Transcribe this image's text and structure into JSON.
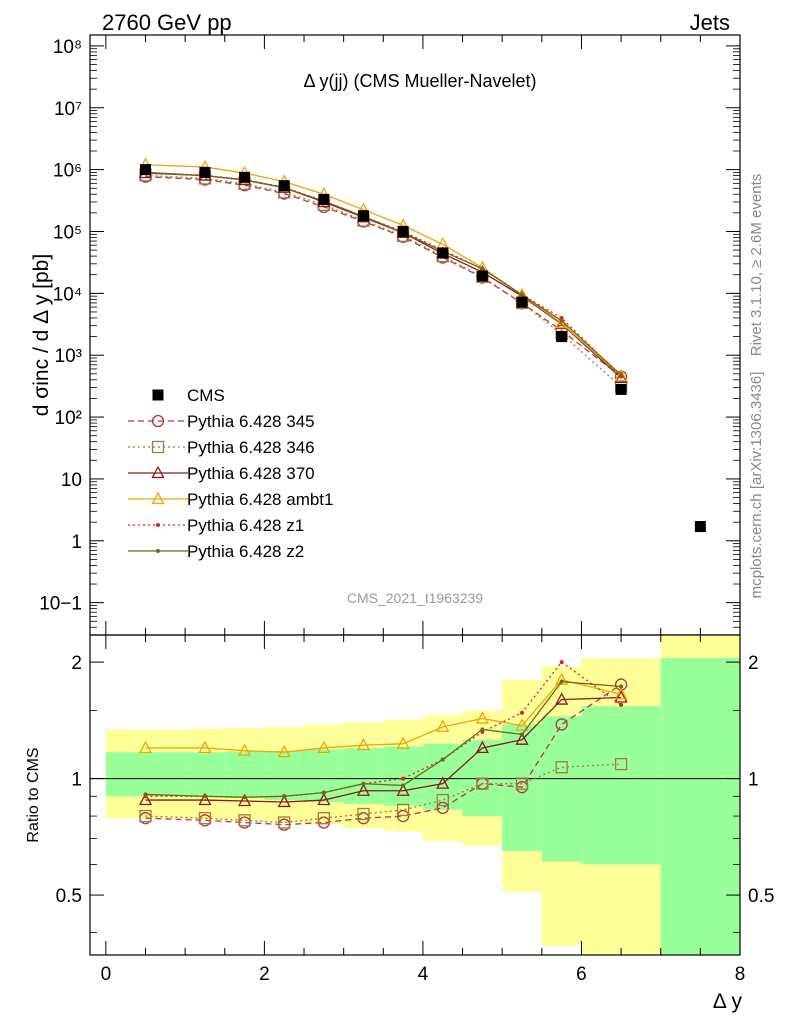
{
  "header": {
    "left": "2760 GeV pp",
    "right": "Jets"
  },
  "side": {
    "rivet": "Rivet 3.1.10, ≥ 2.6M events",
    "mcplots": "mcplots.cern.ch [arXiv:1306.3436]"
  },
  "chart_data": [
    {
      "type": "scatter",
      "title": "Δ y(jj) (CMS Mueller-Navelet)",
      "xlabel": "",
      "ylabel": "d σinc / d Δ y [pb]",
      "yscale": "log",
      "ylim": [
        0.03,
        150000000
      ],
      "xlim": [
        -0.2,
        8
      ],
      "yticks": [
        "10−1",
        "1",
        "10",
        "10²",
        "10³",
        "10⁴",
        "10⁵",
        "10⁶",
        "10⁷",
        "10⁸"
      ],
      "watermark": "CMS_2021_I1963239",
      "x": [
        0.5,
        1.25,
        1.75,
        2.25,
        2.75,
        3.25,
        3.75,
        4.25,
        4.75,
        5.25,
        5.75,
        6.5
      ],
      "series": [
        {
          "name": "CMS",
          "color": "#000000",
          "marker": "square",
          "values": [
            1000000,
            900000,
            750000,
            550000,
            330000,
            180000,
            100000,
            45000,
            19000,
            7200,
            2000,
            280
          ]
        },
        {
          "name": "Pythia 6.428 345",
          "color": "#b8363f",
          "marker": "circle",
          "dash": "6,4",
          "values": [
            770000,
            690000,
            560000,
            410000,
            250000,
            145000,
            82000,
            38000,
            18000,
            6900,
            2500,
            450
          ]
        },
        {
          "name": "Pythia 6.428 346",
          "color": "#a07a3c",
          "marker": "square-open",
          "dash": "2,3",
          "values": [
            810000,
            720000,
            590000,
            430000,
            270000,
            150000,
            85000,
            40000,
            18500,
            7000,
            2200,
            310
          ]
        },
        {
          "name": "Pythia 6.428 370",
          "color": "#8b1a1a",
          "marker": "triangle",
          "values": [
            880000,
            800000,
            680000,
            510000,
            300000,
            170000,
            95000,
            44000,
            22000,
            9000,
            3200,
            430
          ]
        },
        {
          "name": "Pythia 6.428 ambt1",
          "color": "#f0a30a",
          "marker": "triangle",
          "values": [
            1200000,
            1100000,
            880000,
            640000,
            400000,
            225000,
            125000,
            62000,
            26000,
            9400,
            3300,
            460
          ]
        },
        {
          "name": "Pythia 6.428 z1",
          "color": "#dd2222",
          "marker": "dot",
          "dash": "2,3",
          "values": [
            900000,
            810000,
            690000,
            520000,
            310000,
            175000,
            100000,
            50000,
            25000,
            9500,
            4000,
            450
          ]
        },
        {
          "name": "Pythia 6.428 z2",
          "color": "#6b6b1a",
          "marker": "dot",
          "values": [
            900000,
            800000,
            680000,
            510000,
            310000,
            175000,
            96000,
            48000,
            25000,
            9400,
            3600,
            480
          ]
        }
      ],
      "extra_point": {
        "name": "CMS",
        "x": 7.5,
        "y": 1.7
      }
    },
    {
      "type": "line",
      "title": "",
      "xlabel": "Δ y",
      "ylabel": "Ratio to CMS",
      "yscale": "log",
      "ylim": [
        0.35,
        2.35
      ],
      "xlim": [
        -0.2,
        8
      ],
      "xticks": [
        "0",
        "2",
        "4",
        "6",
        "8"
      ],
      "yticks": [
        "0.5",
        "1",
        "2"
      ],
      "bands": {
        "edges": [
          0,
          1,
          1.5,
          2,
          2.5,
          3,
          3.5,
          4,
          4.5,
          5,
          5.5,
          6,
          7,
          8
        ],
        "green": [
          [
            0.9,
            1.17
          ],
          [
            0.895,
            1.17
          ],
          [
            0.89,
            1.175
          ],
          [
            0.88,
            1.18
          ],
          [
            0.87,
            1.19
          ],
          [
            0.86,
            1.2
          ],
          [
            0.85,
            1.21
          ],
          [
            0.83,
            1.23
          ],
          [
            0.8,
            1.26
          ],
          [
            0.65,
            1.38
          ],
          [
            0.61,
            1.45
          ],
          [
            0.6,
            1.54
          ],
          [
            0.35,
            2.05
          ]
        ],
        "yellow": [
          [
            0.79,
            1.34
          ],
          [
            0.785,
            1.345
          ],
          [
            0.78,
            1.35
          ],
          [
            0.77,
            1.36
          ],
          [
            0.76,
            1.38
          ],
          [
            0.745,
            1.4
          ],
          [
            0.73,
            1.42
          ],
          [
            0.69,
            1.46
          ],
          [
            0.67,
            1.5
          ],
          [
            0.51,
            1.8
          ],
          [
            0.37,
            1.95
          ],
          [
            0.35,
            2.05
          ],
          [
            0.35,
            2.35
          ]
        ]
      },
      "x": [
        0.5,
        1.25,
        1.75,
        2.25,
        2.75,
        3.25,
        3.75,
        4.25,
        4.75,
        5.25,
        5.75,
        6.5
      ],
      "series": [
        {
          "name": "Pythia 6.428 345",
          "color": "#b8363f",
          "marker": "circle",
          "dash": "6,4",
          "values": [
            0.79,
            0.78,
            0.77,
            0.76,
            0.77,
            0.79,
            0.8,
            0.84,
            0.97,
            0.95,
            1.38,
            1.75
          ]
        },
        {
          "name": "Pythia 6.428 346",
          "color": "#a07a3c",
          "marker": "square-open",
          "dash": "2,3",
          "values": [
            0.8,
            0.79,
            0.78,
            0.77,
            0.79,
            0.81,
            0.83,
            0.88,
            0.97,
            0.97,
            1.07,
            1.09
          ]
        },
        {
          "name": "Pythia 6.428 370",
          "color": "#8b1a1a",
          "marker": "triangle",
          "values": [
            0.88,
            0.88,
            0.875,
            0.87,
            0.88,
            0.93,
            0.93,
            0.97,
            1.2,
            1.26,
            1.6,
            1.62
          ]
        },
        {
          "name": "Pythia 6.428 ambt1",
          "color": "#f0a30a",
          "marker": "triangle",
          "values": [
            1.2,
            1.2,
            1.18,
            1.17,
            1.2,
            1.22,
            1.23,
            1.36,
            1.43,
            1.37,
            1.8,
            1.65
          ]
        },
        {
          "name": "Pythia 6.428 z1",
          "color": "#dd2222",
          "marker": "dot",
          "dash": "2,3",
          "values": [
            0.9,
            0.9,
            0.895,
            0.9,
            0.92,
            0.97,
            1.0,
            1.12,
            1.32,
            1.48,
            2.0,
            1.55
          ]
        },
        {
          "name": "Pythia 6.428 z2",
          "color": "#6b6b1a",
          "marker": "dot",
          "values": [
            0.91,
            0.9,
            0.895,
            0.9,
            0.92,
            0.97,
            0.96,
            1.12,
            1.34,
            1.3,
            1.78,
            1.73
          ]
        }
      ]
    }
  ]
}
